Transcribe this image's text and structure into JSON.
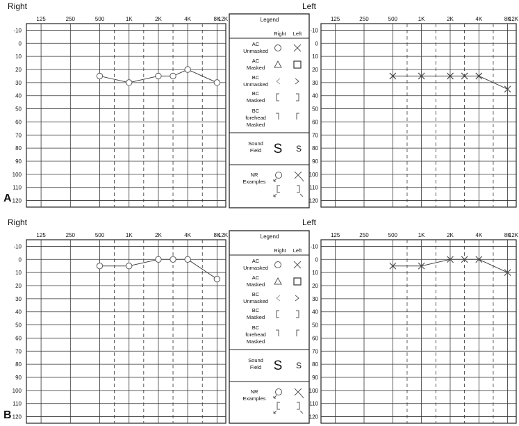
{
  "panel_labels": [
    "A",
    "B"
  ],
  "legend": {
    "title": "Legend",
    "col_right": "Right",
    "col_left": "Left",
    "rows": [
      {
        "label": [
          "AC",
          "Unmasked"
        ],
        "right_symbol": "circle-icon",
        "left_symbol": "x-icon"
      },
      {
        "label": [
          "AC",
          "Masked"
        ],
        "right_symbol": "triangle-icon",
        "left_symbol": "square-icon"
      },
      {
        "label": [
          "BC",
          "Unmasked"
        ],
        "right_symbol": "angle-left-icon",
        "left_symbol": "angle-right-icon"
      },
      {
        "label": [
          "BC",
          "Masked"
        ],
        "right_symbol": "bracket-left-icon",
        "left_symbol": "bracket-right-icon"
      },
      {
        "label": [
          "BC",
          "forehead",
          "Masked"
        ],
        "right_symbol": "tick-left-icon",
        "left_symbol": "tick-right-icon"
      },
      {
        "label": [
          "Sound",
          "Field"
        ],
        "right_symbol": "S",
        "left_symbol": "S"
      },
      {
        "label": [
          "NR",
          "Examples"
        ],
        "right_symbol": "nr-circle-bracket-icon",
        "left_symbol": "nr-x-bracket-icon"
      }
    ]
  },
  "chart_data": [
    {
      "type": "line",
      "title": "Right",
      "panel": "A",
      "x_ticks": [
        "125",
        "250",
        "500",
        "1K",
        "2K",
        "4K",
        "8K",
        "12K"
      ],
      "ylim": [
        -10,
        120
      ],
      "y_ticks": [
        -10,
        0,
        10,
        20,
        30,
        40,
        50,
        60,
        70,
        80,
        90,
        100,
        110,
        120
      ],
      "y_reversed": true,
      "marker": "circle",
      "series": [
        {
          "x": [
            "500",
            "1K",
            "2K",
            "3K",
            "4K",
            "8K"
          ],
          "values": [
            25,
            30,
            25,
            25,
            20,
            30
          ]
        }
      ]
    },
    {
      "type": "line",
      "title": "Left",
      "panel": "A",
      "x_ticks": [
        "125",
        "250",
        "500",
        "1K",
        "2K",
        "4K",
        "8K",
        "12K"
      ],
      "ylim": [
        -10,
        120
      ],
      "y_ticks": [
        -10,
        0,
        10,
        20,
        30,
        40,
        50,
        60,
        70,
        80,
        90,
        100,
        110,
        120
      ],
      "y_reversed": true,
      "marker": "x",
      "series": [
        {
          "x": [
            "500",
            "1K",
            "2K",
            "3K",
            "4K",
            "8K"
          ],
          "values": [
            25,
            25,
            25,
            25,
            25,
            35
          ]
        }
      ]
    },
    {
      "type": "line",
      "title": "Right",
      "panel": "B",
      "x_ticks": [
        "125",
        "250",
        "500",
        "1K",
        "2K",
        "4K",
        "8K",
        "12K"
      ],
      "ylim": [
        -10,
        120
      ],
      "y_ticks": [
        -10,
        0,
        10,
        20,
        30,
        40,
        50,
        60,
        70,
        80,
        90,
        100,
        110,
        120
      ],
      "y_reversed": true,
      "marker": "circle",
      "series": [
        {
          "x": [
            "500",
            "1K",
            "2K",
            "3K",
            "4K",
            "8K"
          ],
          "values": [
            5,
            5,
            0,
            0,
            0,
            15
          ]
        }
      ]
    },
    {
      "type": "line",
      "title": "Left",
      "panel": "B",
      "x_ticks": [
        "125",
        "250",
        "500",
        "1K",
        "2K",
        "4K",
        "8K",
        "12K"
      ],
      "ylim": [
        -10,
        120
      ],
      "y_ticks": [
        -10,
        0,
        10,
        20,
        30,
        40,
        50,
        60,
        70,
        80,
        90,
        100,
        110,
        120
      ],
      "y_reversed": true,
      "marker": "x",
      "series": [
        {
          "x": [
            "500",
            "1K",
            "2K",
            "3K",
            "4K",
            "8K"
          ],
          "values": [
            5,
            5,
            0,
            0,
            0,
            10
          ]
        }
      ]
    }
  ]
}
